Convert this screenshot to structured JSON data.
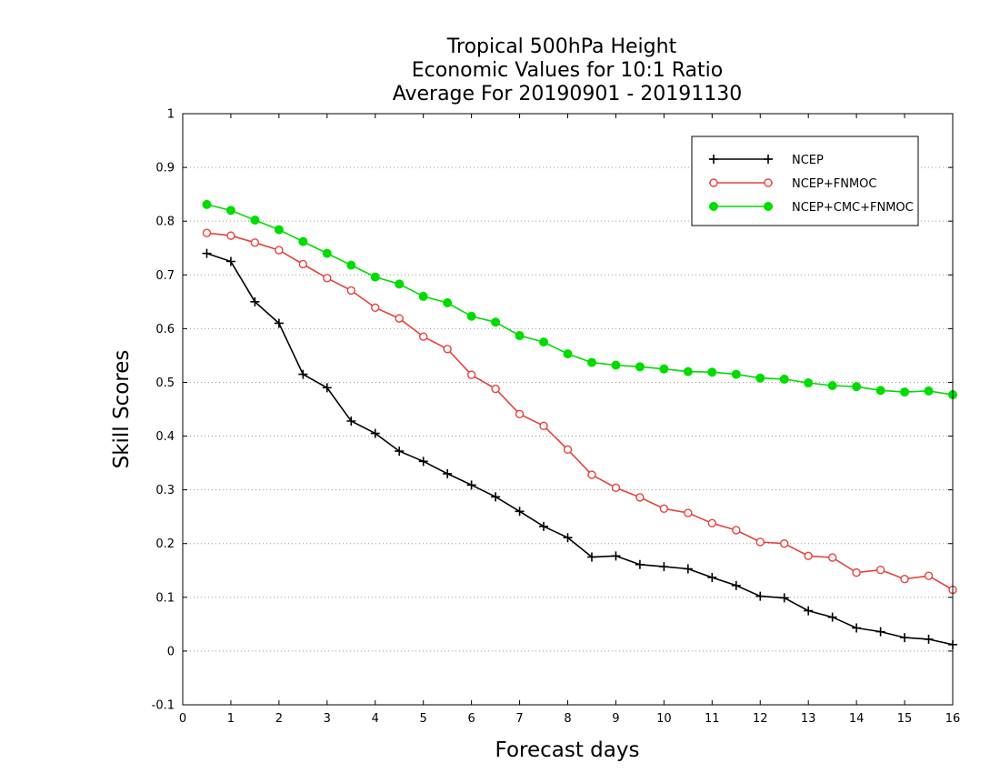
{
  "chart_data": {
    "type": "line",
    "title_lines": [
      "Tropical 500hPa Height",
      "Economic Values for 10:1 Ratio",
      "Average For 20190901 - 20191130"
    ],
    "xlabel": "Forecast days",
    "ylabel": "Skill Scores",
    "xlim": [
      0,
      16
    ],
    "ylim": [
      -0.1,
      1
    ],
    "xticks": [
      0,
      1,
      2,
      3,
      4,
      5,
      6,
      7,
      8,
      9,
      10,
      11,
      12,
      13,
      14,
      15,
      16
    ],
    "yticks": [
      -0.1,
      0,
      0.1,
      0.2,
      0.3,
      0.4,
      0.5,
      0.6,
      0.7,
      0.8,
      0.9,
      1
    ],
    "ytick_labels": [
      "-0.1",
      "0",
      "0.1",
      "0.2",
      "0.3",
      "0.4",
      "0.5",
      "0.6",
      "0.7",
      "0.8",
      "0.9",
      "1"
    ],
    "grid": "horizontal-dotted",
    "legend_position": "top-right",
    "x": [
      0.5,
      1,
      1.5,
      2,
      2.5,
      3,
      3.5,
      4,
      4.5,
      5,
      5.5,
      6,
      6.5,
      7,
      7.5,
      8,
      8.5,
      9,
      9.5,
      10,
      10.5,
      11,
      11.5,
      12,
      12.5,
      13,
      13.5,
      14,
      14.5,
      15,
      15.5,
      16
    ],
    "series": [
      {
        "name": "NCEP",
        "color": "#000000",
        "marker": "plus",
        "values": [
          0.74,
          0.725,
          0.65,
          0.61,
          0.515,
          0.49,
          0.428,
          0.405,
          0.372,
          0.353,
          0.33,
          0.309,
          0.287,
          0.26,
          0.232,
          0.211,
          0.175,
          0.177,
          0.161,
          0.157,
          0.153,
          0.137,
          0.122,
          0.102,
          0.099,
          0.075,
          0.063,
          0.043,
          0.036,
          0.025,
          0.022,
          0.012
        ]
      },
      {
        "name": "NCEP+FNMOC",
        "color": "#e8403c",
        "marker": "open-circle",
        "values": [
          0.778,
          0.773,
          0.76,
          0.746,
          0.72,
          0.694,
          0.671,
          0.639,
          0.619,
          0.585,
          0.562,
          0.514,
          0.488,
          0.441,
          0.419,
          0.375,
          0.328,
          0.304,
          0.286,
          0.265,
          0.257,
          0.238,
          0.225,
          0.203,
          0.2,
          0.177,
          0.174,
          0.146,
          0.151,
          0.134,
          0.14,
          0.114
        ]
      },
      {
        "name": "NCEP+CMC+FNMOC",
        "color": "#00dc00",
        "marker": "filled-circle",
        "values": [
          0.831,
          0.82,
          0.802,
          0.784,
          0.762,
          0.74,
          0.718,
          0.696,
          0.683,
          0.66,
          0.648,
          0.623,
          0.612,
          0.587,
          0.575,
          0.553,
          0.537,
          0.532,
          0.529,
          0.525,
          0.52,
          0.519,
          0.515,
          0.508,
          0.506,
          0.499,
          0.494,
          0.492,
          0.485,
          0.482,
          0.484,
          0.477
        ]
      }
    ]
  }
}
